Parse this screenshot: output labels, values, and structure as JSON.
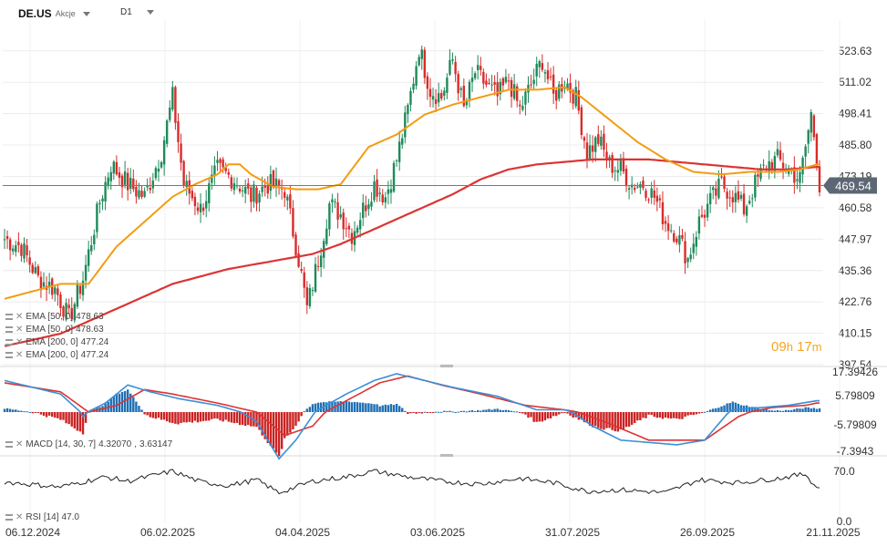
{
  "header": {
    "symbol": "DE.US",
    "asset_type": "Akcje",
    "interval": "D1"
  },
  "price_badge": "469.54",
  "countdown": {
    "hours": "09",
    "h_unit": "h",
    "minutes": "17",
    "m_unit": "m"
  },
  "indicators": [
    {
      "label": "EMA [50, 0]",
      "value": "478.63"
    },
    {
      "label": "EMA [50, 0]",
      "value": "478.63"
    },
    {
      "label": "EMA [200, 0]",
      "value": "477.24"
    },
    {
      "label": "EMA [200, 0]",
      "value": "477.24"
    }
  ],
  "macd_legend": {
    "label": "MACD [14, 30, 7]",
    "v1": "4.32070",
    "v2": "3.63147"
  },
  "rsi_legend": {
    "label": "RSI [14]",
    "value": "47.0"
  },
  "colors": {
    "up": "#1e8a5a",
    "down": "#d92b2b",
    "ema50": "#f39c12",
    "ema200": "#dd3333",
    "macd_line": "#3b8fd6",
    "signal_line": "#dd3333",
    "hist_up": "#1f6fb4",
    "hist_down": "#cc2222"
  },
  "chart_data": [
    {
      "type": "candlestick",
      "x_ticks": [
        "06.12.2024",
        "06.02.2025",
        "04.04.2025",
        "03.06.2025",
        "31.07.2025",
        "26.09.2025",
        "21.11.2025"
      ],
      "y_ticks": [
        "523.63",
        "511.02",
        "498.41",
        "485.80",
        "473.19",
        "460.58",
        "447.97",
        "435.36",
        "422.76",
        "410.15",
        "397.54"
      ],
      "ylim": [
        397.54,
        536.0
      ],
      "last_price": 469.54,
      "close_anchors": [
        [
          0,
          448
        ],
        [
          6,
          445
        ],
        [
          12,
          432
        ],
        [
          18,
          428
        ],
        [
          23,
          416
        ],
        [
          28,
          432
        ],
        [
          34,
          463
        ],
        [
          38,
          478
        ],
        [
          44,
          470
        ],
        [
          50,
          465
        ],
        [
          56,
          483
        ],
        [
          60,
          505
        ],
        [
          64,
          470
        ],
        [
          70,
          460
        ],
        [
          76,
          476
        ],
        [
          82,
          472
        ],
        [
          88,
          465
        ],
        [
          94,
          470
        ],
        [
          100,
          468
        ],
        [
          105,
          440
        ],
        [
          108,
          420
        ],
        [
          112,
          440
        ],
        [
          116,
          462
        ],
        [
          120,
          458
        ],
        [
          124,
          450
        ],
        [
          128,
          460
        ],
        [
          132,
          470
        ],
        [
          136,
          465
        ],
        [
          140,
          480
        ],
        [
          144,
          500
        ],
        [
          148,
          525
        ],
        [
          152,
          508
        ],
        [
          156,
          505
        ],
        [
          160,
          520
        ],
        [
          164,
          500
        ],
        [
          168,
          515
        ],
        [
          172,
          510
        ],
        [
          176,
          505
        ],
        [
          180,
          512
        ],
        [
          184,
          500
        ],
        [
          188,
          510
        ],
        [
          192,
          520
        ],
        [
          196,
          505
        ],
        [
          200,
          512
        ],
        [
          204,
          505
        ],
        [
          208,
          483
        ],
        [
          212,
          488
        ],
        [
          216,
          478
        ],
        [
          220,
          476
        ],
        [
          224,
          470
        ],
        [
          228,
          470
        ],
        [
          232,
          465
        ],
        [
          236,
          455
        ],
        [
          240,
          450
        ],
        [
          244,
          440
        ],
        [
          248,
          455
        ],
        [
          252,
          463
        ],
        [
          256,
          470
        ],
        [
          260,
          466
        ],
        [
          264,
          460
        ],
        [
          268,
          470
        ],
        [
          272,
          478
        ],
        [
          276,
          480
        ],
        [
          280,
          476
        ],
        [
          284,
          472
        ],
        [
          288,
          498
        ],
        [
          290,
          482
        ],
        [
          291,
          470
        ]
      ],
      "ema50_anchors": [
        [
          0,
          424
        ],
        [
          20,
          430
        ],
        [
          30,
          430
        ],
        [
          40,
          445
        ],
        [
          60,
          465
        ],
        [
          68,
          470
        ],
        [
          76,
          474
        ],
        [
          80,
          478
        ],
        [
          84,
          478
        ],
        [
          88,
          474
        ],
        [
          96,
          469
        ],
        [
          104,
          468
        ],
        [
          112,
          468
        ],
        [
          120,
          470
        ],
        [
          130,
          485
        ],
        [
          140,
          490
        ],
        [
          150,
          498
        ],
        [
          160,
          502
        ],
        [
          170,
          505
        ],
        [
          180,
          508
        ],
        [
          190,
          508
        ],
        [
          200,
          509
        ],
        [
          206,
          505
        ],
        [
          216,
          496
        ],
        [
          226,
          487
        ],
        [
          236,
          480
        ],
        [
          246,
          475
        ],
        [
          256,
          474
        ],
        [
          266,
          475
        ],
        [
          276,
          475
        ],
        [
          284,
          476
        ],
        [
          290,
          478
        ]
      ],
      "ema200_anchors": [
        [
          0,
          405
        ],
        [
          20,
          410
        ],
        [
          40,
          420
        ],
        [
          60,
          430
        ],
        [
          80,
          436
        ],
        [
          100,
          440
        ],
        [
          110,
          442
        ],
        [
          120,
          446
        ],
        [
          140,
          456
        ],
        [
          160,
          466
        ],
        [
          170,
          472
        ],
        [
          180,
          476
        ],
        [
          190,
          478
        ],
        [
          200,
          479
        ],
        [
          210,
          480
        ],
        [
          220,
          480
        ],
        [
          230,
          480
        ],
        [
          240,
          479
        ],
        [
          250,
          478
        ],
        [
          260,
          477
        ],
        [
          270,
          476
        ],
        [
          280,
          476
        ],
        [
          290,
          477
        ]
      ]
    },
    {
      "type": "line",
      "name": "MACD [14, 30, 7]",
      "y_ticks": [
        "17.39426",
        "5.79809",
        "-5.79809",
        "-7.3943"
      ],
      "ylim": [
        -7.3943,
        17.39426
      ],
      "macd_anchors": [
        [
          0,
          14
        ],
        [
          20,
          8
        ],
        [
          28,
          -1
        ],
        [
          36,
          4
        ],
        [
          44,
          12
        ],
        [
          52,
          9
        ],
        [
          62,
          6
        ],
        [
          76,
          3
        ],
        [
          90,
          -2
        ],
        [
          98,
          -10
        ],
        [
          104,
          -6
        ],
        [
          112,
          1
        ],
        [
          122,
          8
        ],
        [
          132,
          14
        ],
        [
          140,
          17
        ],
        [
          150,
          14
        ],
        [
          160,
          11
        ],
        [
          176,
          7
        ],
        [
          190,
          1
        ],
        [
          200,
          1
        ],
        [
          210,
          -3
        ],
        [
          220,
          -6
        ],
        [
          240,
          -7
        ],
        [
          250,
          -6
        ],
        [
          260,
          1
        ],
        [
          270,
          2
        ],
        [
          280,
          3
        ],
        [
          290,
          5
        ]
      ],
      "signal_anchors": [
        [
          0,
          13
        ],
        [
          20,
          9
        ],
        [
          30,
          0
        ],
        [
          40,
          3
        ],
        [
          50,
          10
        ],
        [
          60,
          8
        ],
        [
          76,
          4
        ],
        [
          90,
          0
        ],
        [
          100,
          -5
        ],
        [
          110,
          -3
        ],
        [
          122,
          5
        ],
        [
          134,
          13
        ],
        [
          144,
          16
        ],
        [
          156,
          12
        ],
        [
          170,
          8
        ],
        [
          186,
          3
        ],
        [
          200,
          1
        ],
        [
          214,
          -2
        ],
        [
          230,
          -6
        ],
        [
          250,
          -6
        ],
        [
          262,
          -1
        ],
        [
          274,
          2
        ],
        [
          286,
          3
        ],
        [
          290,
          4
        ]
      ]
    },
    {
      "type": "line",
      "name": "RSI [14]",
      "y_ticks": [
        "70.0",
        "0.0"
      ],
      "rsi_anchors": [
        [
          0,
          55
        ],
        [
          20,
          48
        ],
        [
          36,
          62
        ],
        [
          44,
          56
        ],
        [
          60,
          70
        ],
        [
          70,
          55
        ],
        [
          80,
          50
        ],
        [
          90,
          58
        ],
        [
          98,
          40
        ],
        [
          110,
          56
        ],
        [
          122,
          62
        ],
        [
          132,
          70
        ],
        [
          144,
          62
        ],
        [
          156,
          56
        ],
        [
          170,
          52
        ],
        [
          184,
          60
        ],
        [
          196,
          54
        ],
        [
          208,
          42
        ],
        [
          220,
          44
        ],
        [
          236,
          40
        ],
        [
          248,
          58
        ],
        [
          262,
          54
        ],
        [
          276,
          60
        ],
        [
          286,
          66
        ],
        [
          290,
          47
        ]
      ]
    }
  ]
}
